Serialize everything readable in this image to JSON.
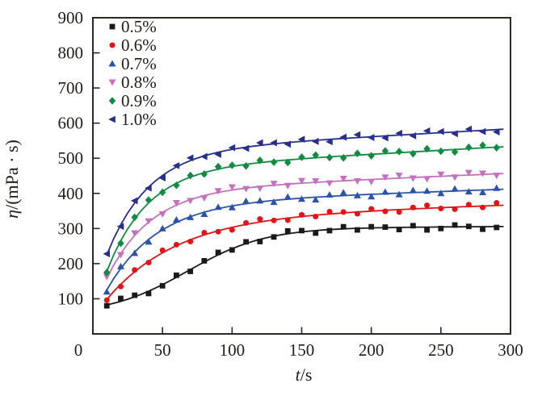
{
  "chart_data": {
    "type": "scatter",
    "title": "",
    "xlabel": "t/s",
    "xlabel_parts": {
      "italic": "t",
      "rest": "/s"
    },
    "ylabel": "η/(mPa · s)",
    "ylabel_parts": {
      "italic": "η",
      "rest": "/(mPa · s)"
    },
    "xlim": [
      0,
      300
    ],
    "ylim": [
      0,
      900
    ],
    "x_ticks": [
      0,
      50,
      100,
      150,
      200,
      250,
      300
    ],
    "y_ticks": [
      100,
      200,
      300,
      400,
      500,
      600,
      700,
      800,
      900
    ],
    "grid": false,
    "legend_position": "top-left-inside",
    "frame_color": "#2e2723",
    "text_color": "#221b17",
    "series": [
      {
        "name": "0.5%",
        "color": "#1a1a1a",
        "marker": "square",
        "fit": {
          "type": "logistic",
          "L1": 55,
          "L2": 300,
          "tm": 68,
          "k": 28,
          "d": 0.02
        },
        "points": [
          [
            10,
            80
          ],
          [
            20,
            101
          ],
          [
            30,
            110
          ],
          [
            40,
            115
          ],
          [
            50,
            137
          ],
          [
            60,
            167
          ],
          [
            70,
            178
          ],
          [
            80,
            208
          ],
          [
            90,
            232
          ],
          [
            100,
            239
          ],
          [
            110,
            262
          ],
          [
            120,
            263
          ],
          [
            130,
            276
          ],
          [
            140,
            293
          ],
          [
            150,
            294
          ],
          [
            160,
            287
          ],
          [
            170,
            294
          ],
          [
            180,
            305
          ],
          [
            190,
            296
          ],
          [
            200,
            305
          ],
          [
            210,
            304
          ],
          [
            220,
            297
          ],
          [
            230,
            308
          ],
          [
            240,
            296
          ],
          [
            250,
            300
          ],
          [
            260,
            310
          ],
          [
            270,
            306
          ],
          [
            280,
            298
          ],
          [
            290,
            303
          ]
        ]
      },
      {
        "name": "0.6%",
        "color": "#e41317",
        "marker": "circle",
        "fit": {
          "type": "exp",
          "A": 330,
          "B": 232,
          "tau": 50,
          "d": 0.13
        },
        "points": [
          [
            10,
            96
          ],
          [
            20,
            135
          ],
          [
            30,
            182
          ],
          [
            40,
            203
          ],
          [
            50,
            238
          ],
          [
            60,
            254
          ],
          [
            70,
            263
          ],
          [
            80,
            288
          ],
          [
            90,
            291
          ],
          [
            100,
            296
          ],
          [
            110,
            316
          ],
          [
            120,
            327
          ],
          [
            130,
            323
          ],
          [
            140,
            324
          ],
          [
            150,
            339
          ],
          [
            160,
            334
          ],
          [
            170,
            348
          ],
          [
            180,
            347
          ],
          [
            190,
            342
          ],
          [
            200,
            356
          ],
          [
            210,
            349
          ],
          [
            220,
            347
          ],
          [
            230,
            360
          ],
          [
            240,
            366
          ],
          [
            250,
            357
          ],
          [
            260,
            355
          ],
          [
            270,
            368
          ],
          [
            280,
            360
          ],
          [
            290,
            373
          ]
        ]
      },
      {
        "name": "0.7%",
        "color": "#2c53aa",
        "marker": "triangle-up",
        "fit": {
          "type": "exp",
          "A": 372,
          "B": 247,
          "tau": 36,
          "d": 0.14
        },
        "points": [
          [
            10,
            120
          ],
          [
            20,
            192
          ],
          [
            30,
            230
          ],
          [
            40,
            262
          ],
          [
            50,
            300
          ],
          [
            60,
            325
          ],
          [
            70,
            332
          ],
          [
            80,
            341
          ],
          [
            90,
            361
          ],
          [
            100,
            360
          ],
          [
            110,
            378
          ],
          [
            120,
            379
          ],
          [
            130,
            375
          ],
          [
            140,
            390
          ],
          [
            150,
            384
          ],
          [
            160,
            382
          ],
          [
            170,
            396
          ],
          [
            180,
            402
          ],
          [
            190,
            394
          ],
          [
            200,
            391
          ],
          [
            210,
            404
          ],
          [
            220,
            397
          ],
          [
            230,
            409
          ],
          [
            240,
            407
          ],
          [
            250,
            400
          ],
          [
            260,
            413
          ],
          [
            270,
            405
          ],
          [
            280,
            403
          ],
          [
            290,
            415
          ]
        ]
      },
      {
        "name": "0.8%",
        "color": "#c471bf",
        "marker": "triangle-down",
        "fit": {
          "type": "exp",
          "A": 408,
          "B": 250,
          "tau": 31,
          "d": 0.17
        },
        "points": [
          [
            10,
            163
          ],
          [
            20,
            225
          ],
          [
            30,
            287
          ],
          [
            40,
            321
          ],
          [
            50,
            341
          ],
          [
            60,
            373
          ],
          [
            70,
            379
          ],
          [
            80,
            387
          ],
          [
            90,
            407
          ],
          [
            100,
            418
          ],
          [
            110,
            413
          ],
          [
            120,
            414
          ],
          [
            130,
            428
          ],
          [
            140,
            422
          ],
          [
            150,
            436
          ],
          [
            160,
            435
          ],
          [
            170,
            429
          ],
          [
            180,
            442
          ],
          [
            190,
            435
          ],
          [
            200,
            433
          ],
          [
            210,
            446
          ],
          [
            220,
            451
          ],
          [
            230,
            443
          ],
          [
            240,
            441
          ],
          [
            250,
            454
          ],
          [
            260,
            446
          ],
          [
            270,
            459
          ],
          [
            280,
            457
          ],
          [
            290,
            451
          ]
        ]
      },
      {
        "name": "0.9%",
        "color": "#118b42",
        "marker": "diamond",
        "fit": {
          "type": "exp",
          "A": 470,
          "B": 292,
          "tau": 29,
          "d": 0.22
        },
        "points": [
          [
            10,
            175
          ],
          [
            20,
            258
          ],
          [
            30,
            332
          ],
          [
            40,
            381
          ],
          [
            50,
            403
          ],
          [
            60,
            423
          ],
          [
            70,
            451
          ],
          [
            80,
            455
          ],
          [
            90,
            476
          ],
          [
            100,
            480
          ],
          [
            110,
            478
          ],
          [
            120,
            494
          ],
          [
            130,
            489
          ],
          [
            140,
            488
          ],
          [
            150,
            503
          ],
          [
            160,
            509
          ],
          [
            170,
            502
          ],
          [
            180,
            501
          ],
          [
            190,
            514
          ],
          [
            200,
            507
          ],
          [
            210,
            521
          ],
          [
            220,
            519
          ],
          [
            230,
            513
          ],
          [
            240,
            527
          ],
          [
            250,
            520
          ],
          [
            260,
            518
          ],
          [
            270,
            531
          ],
          [
            280,
            537
          ],
          [
            290,
            530
          ]
        ]
      },
      {
        "name": "1.0%",
        "color": "#272f8e",
        "marker": "triangle-left",
        "fit": {
          "type": "exp",
          "A": 520,
          "B": 295,
          "tau": 30,
          "d": 0.22
        },
        "points": [
          [
            10,
            228
          ],
          [
            20,
            306
          ],
          [
            30,
            379
          ],
          [
            40,
            415
          ],
          [
            50,
            444
          ],
          [
            60,
            479
          ],
          [
            70,
            501
          ],
          [
            80,
            505
          ],
          [
            90,
            511
          ],
          [
            100,
            530
          ],
          [
            110,
            528
          ],
          [
            120,
            544
          ],
          [
            130,
            544
          ],
          [
            140,
            540
          ],
          [
            150,
            554
          ],
          [
            160,
            548
          ],
          [
            170,
            547
          ],
          [
            180,
            560
          ],
          [
            190,
            567
          ],
          [
            200,
            559
          ],
          [
            210,
            558
          ],
          [
            220,
            571
          ],
          [
            230,
            564
          ],
          [
            240,
            578
          ],
          [
            250,
            576
          ],
          [
            260,
            570
          ],
          [
            270,
            583
          ],
          [
            280,
            576
          ],
          [
            290,
            575
          ]
        ]
      }
    ]
  }
}
